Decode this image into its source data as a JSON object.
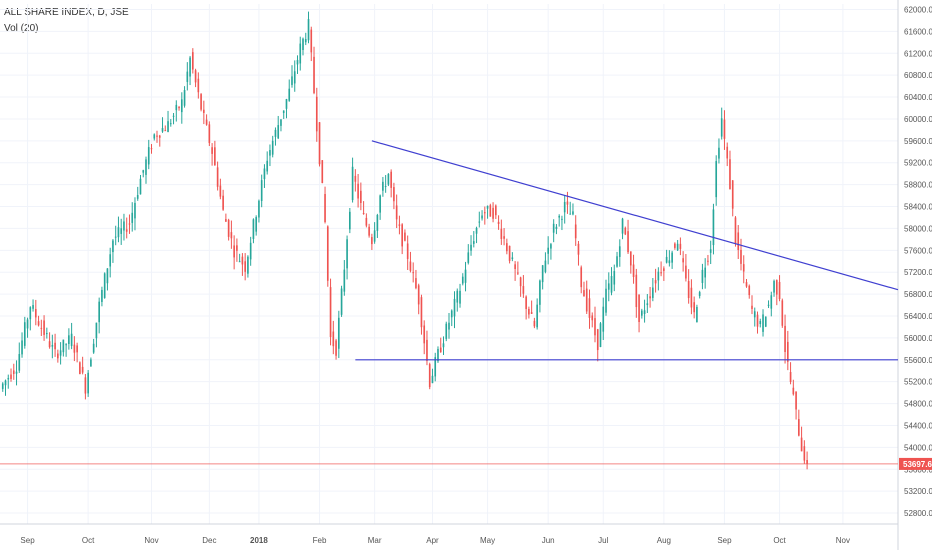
{
  "legend": {
    "symbol": "ALL SHARE INDEX, D, JSE",
    "indicator": "Vol (20)"
  },
  "colors": {
    "up": "#26a69a",
    "down": "#ef5350",
    "grid": "#f0f3fa",
    "trendline": "#3f3fd0",
    "last_price_line": "#ef5350",
    "last_price_tag": "#ef5350"
  },
  "chart_data": {
    "type": "candlestick",
    "title": "ALL SHARE INDEX, D, JSE",
    "xlabel": "",
    "ylabel": "",
    "ylim": [
      52600,
      62100
    ],
    "y_ticks": [
      52800,
      53200,
      53600,
      54000,
      54400,
      54800,
      55200,
      55600,
      56000,
      56400,
      56800,
      57200,
      57600,
      58000,
      58400,
      58800,
      59200,
      59600,
      60000,
      60400,
      60800,
      61200,
      61600,
      62000
    ],
    "y_tick_labels": [
      "52800.00",
      "53200.00",
      "53600.00",
      "54000.00",
      "54400.00",
      "54800.00",
      "55200.00",
      "55600.00",
      "56000.00",
      "56400.00",
      "56800.00",
      "57200.00",
      "57600.00",
      "58000.00",
      "58400.00",
      "58800.00",
      "59200.00",
      "59600.00",
      "60000.00",
      "60400.00",
      "60800.00",
      "61200.00",
      "61600.00",
      "62000.00"
    ],
    "x_ticks": [
      {
        "label": "Sep",
        "index": 9,
        "bold": false
      },
      {
        "label": "Oct",
        "index": 31,
        "bold": false
      },
      {
        "label": "Nov",
        "index": 54,
        "bold": false
      },
      {
        "label": "Dec",
        "index": 75,
        "bold": false
      },
      {
        "label": "2018",
        "index": 93,
        "bold": true
      },
      {
        "label": "Feb",
        "index": 115,
        "bold": false
      },
      {
        "label": "Mar",
        "index": 135,
        "bold": false
      },
      {
        "label": "Apr",
        "index": 156,
        "bold": false
      },
      {
        "label": "May",
        "index": 176,
        "bold": false
      },
      {
        "label": "Jun",
        "index": 198,
        "bold": false
      },
      {
        "label": "Jul",
        "index": 218,
        "bold": false
      },
      {
        "label": "Aug",
        "index": 240,
        "bold": false
      },
      {
        "label": "Sep",
        "index": 262,
        "bold": false
      },
      {
        "label": "Oct",
        "index": 282,
        "bold": false
      },
      {
        "label": "Nov",
        "index": 305,
        "bold": false
      }
    ],
    "x_range": [
      -1,
      325
    ],
    "last_price": 53697.62,
    "last_price_label": "53697.62",
    "grid": true,
    "close_path": [
      [
        0,
        55150
      ],
      [
        5,
        55500
      ],
      [
        10,
        56600
      ],
      [
        14,
        56200
      ],
      [
        19,
        55700
      ],
      [
        25,
        56000
      ],
      [
        30,
        55100
      ],
      [
        35,
        56600
      ],
      [
        40,
        57800
      ],
      [
        46,
        58100
      ],
      [
        50,
        58900
      ],
      [
        55,
        59700
      ],
      [
        60,
        59900
      ],
      [
        65,
        60300
      ],
      [
        68,
        61100
      ],
      [
        72,
        60200
      ],
      [
        76,
        59400
      ],
      [
        80,
        58300
      ],
      [
        84,
        57600
      ],
      [
        88,
        57300
      ],
      [
        92,
        58300
      ],
      [
        96,
        59300
      ],
      [
        100,
        59900
      ],
      [
        104,
        60500
      ],
      [
        108,
        61300
      ],
      [
        111,
        61700
      ],
      [
        113,
        60500
      ],
      [
        115,
        59300
      ],
      [
        117,
        58100
      ],
      [
        119,
        56000
      ],
      [
        121,
        55800
      ],
      [
        124,
        57300
      ],
      [
        127,
        59000
      ],
      [
        131,
        58200
      ],
      [
        134,
        57800
      ],
      [
        137,
        58600
      ],
      [
        140,
        59000
      ],
      [
        143,
        58100
      ],
      [
        147,
        57500
      ],
      [
        151,
        56700
      ],
      [
        155,
        55200
      ],
      [
        158,
        55700
      ],
      [
        162,
        56300
      ],
      [
        166,
        56900
      ],
      [
        170,
        57700
      ],
      [
        174,
        58300
      ],
      [
        178,
        58300
      ],
      [
        182,
        57800
      ],
      [
        186,
        57200
      ],
      [
        190,
        56600
      ],
      [
        193,
        56200
      ],
      [
        196,
        57300
      ],
      [
        200,
        58000
      ],
      [
        204,
        58400
      ],
      [
        207,
        58200
      ],
      [
        210,
        57000
      ],
      [
        213,
        56400
      ],
      [
        216,
        55900
      ],
      [
        219,
        56800
      ],
      [
        222,
        57200
      ],
      [
        225,
        58100
      ],
      [
        228,
        57400
      ],
      [
        231,
        56300
      ],
      [
        234,
        56700
      ],
      [
        238,
        57200
      ],
      [
        242,
        57500
      ],
      [
        245,
        57800
      ],
      [
        248,
        57000
      ],
      [
        251,
        56400
      ],
      [
        254,
        57200
      ],
      [
        257,
        57700
      ],
      [
        259,
        59200
      ],
      [
        261,
        60000
      ],
      [
        262,
        59600
      ],
      [
        264,
        58800
      ],
      [
        266,
        57800
      ],
      [
        269,
        57100
      ],
      [
        272,
        56500
      ],
      [
        275,
        56200
      ],
      [
        278,
        56600
      ],
      [
        280,
        57000
      ],
      [
        282,
        56800
      ],
      [
        284,
        55800
      ],
      [
        286,
        55200
      ],
      [
        288,
        54600
      ],
      [
        290,
        54000
      ],
      [
        292,
        53700
      ]
    ],
    "trendlines": [
      {
        "from": [
          134,
          59600
        ],
        "to": [
          325,
          56880
        ]
      },
      {
        "from": [
          128,
          55600
        ],
        "to": [
          325,
          55600
        ]
      }
    ]
  }
}
